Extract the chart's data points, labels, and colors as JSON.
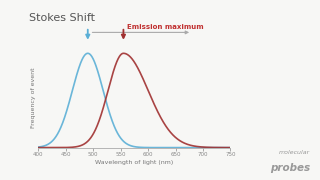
{
  "title": "Stokes Shift",
  "xlabel": "Wavelength of light (nm)",
  "ylabel": "Frequency of event",
  "bg_color": "#f7f7f5",
  "excitation_peak": 490,
  "emission_peak": 555,
  "excitation_sigma": 28,
  "emission_sigma_l": 28,
  "emission_sigma_r": 45,
  "excitation_color": "#5bafd6",
  "emission_color": "#a03030",
  "x_min": 400,
  "x_max": 750,
  "xticks": [
    400,
    450,
    500,
    550,
    600,
    650,
    700,
    750
  ],
  "excitation_arrow_color": "#5bafd6",
  "emission_arrow_color": "#a03030",
  "stokes_arrow_color": "#aaaaaa",
  "emission_label": "Emission maximum",
  "emission_label_color": "#c03030",
  "logo_text1": "molecular",
  "logo_text2": "probes",
  "logo_color": "#999999"
}
